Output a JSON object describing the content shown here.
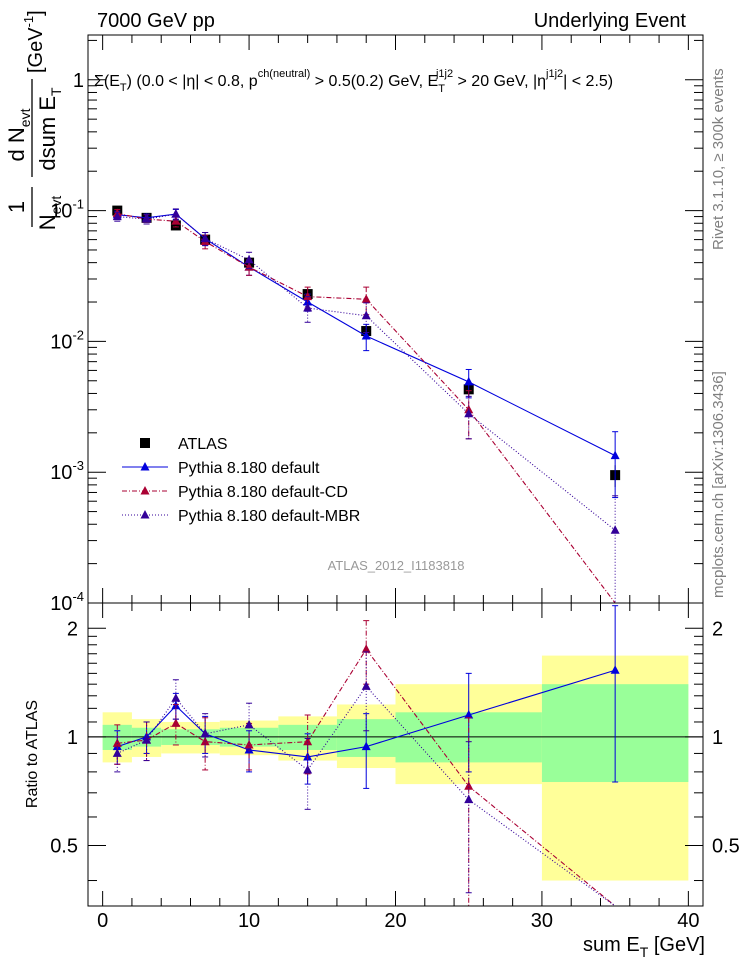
{
  "header": {
    "left": "7000 GeV pp",
    "right": "Underlying Event"
  },
  "side": {
    "upper": "Rivet 3.1.10, ≥ 300k events",
    "lower": "mcplots.cern.ch [arXiv:1306.3436]"
  },
  "watermark": "ATLAS_2012_I1183818",
  "colors": {
    "data": "#000000",
    "default": "#0000dd",
    "cd": "#aa0033",
    "mbr": "#330099",
    "band_inner": "#99ff99",
    "band_outer": "#ffff99"
  },
  "chart_data": [
    {
      "type": "scatter",
      "panel": "main",
      "title": "Σ(E_T) (0.0 < |η| < 0.8, p^{ch(neutral)} > 0.5(0.2) GeV, E_T^{j1j2} > 20 GeV, |η^{j1j2}| < 2.5)",
      "title_parts": [
        "Σ(E",
        "T",
        ") (0.0 < |η| < 0.8, p",
        "ch(neutral)",
        " > 0.5(0.2) GeV, E",
        "T",
        "j1j2",
        " > 20 GeV, |η",
        "j1j2",
        "| < 2.5)"
      ],
      "ylabel_parts": [
        "1",
        "N",
        "evt",
        "d N",
        "evt",
        "dsum E",
        "T",
        "[GeV",
        "-1",
        "]"
      ],
      "yscale": "log",
      "ylim": [
        0.0001,
        2.2
      ],
      "xlim": [
        -1,
        41
      ],
      "yticks": [
        0.0001,
        0.001,
        0.01,
        0.1,
        1
      ],
      "ytick_labels": [
        {
          "base": "10",
          "exp": "-4"
        },
        {
          "base": "10",
          "exp": "-3"
        },
        {
          "base": "10",
          "exp": "-2"
        },
        {
          "base": "10",
          "exp": "-1"
        },
        {
          "base": "1",
          "exp": ""
        }
      ],
      "legend": [
        {
          "key": "data",
          "label": "ATLAS"
        },
        {
          "key": "default",
          "label": "Pythia 8.180 default"
        },
        {
          "key": "cd",
          "label": "Pythia 8.180 default-CD"
        },
        {
          "key": "mbr",
          "label": "Pythia 8.180 default-MBR"
        }
      ],
      "data": {
        "x": [
          1,
          3,
          5,
          7,
          10,
          14,
          18,
          25,
          35
        ],
        "xerr": [
          1,
          1,
          1,
          1,
          2,
          2,
          2,
          5,
          5
        ],
        "y": [
          0.1,
          0.088,
          0.077,
          0.06,
          0.04,
          0.023,
          0.012,
          0.0043,
          0.00095
        ],
        "yerr": [
          0.008,
          0.007,
          0.006,
          0.005,
          0.004,
          0.0025,
          0.0015,
          0.0006,
          0.00018
        ]
      },
      "series": [
        {
          "key": "default",
          "name": "Pythia 8.180 default",
          "x": [
            1,
            3,
            5,
            7,
            10,
            14,
            18,
            25,
            35
          ],
          "y": [
            0.093,
            0.088,
            0.094,
            0.061,
            0.037,
            0.02,
            0.011,
            0.0049,
            0.00134
          ],
          "yerr": [
            0.006,
            0.006,
            0.008,
            0.007,
            0.005,
            0.003,
            0.0025,
            0.0012,
            0.0007
          ]
        },
        {
          "key": "cd",
          "name": "Pythia 8.180 default-CD",
          "x": [
            1,
            3,
            5,
            7,
            10,
            14,
            18,
            25,
            35
          ],
          "y": [
            0.095,
            0.086,
            0.083,
            0.058,
            0.037,
            0.022,
            0.021,
            0.003,
            0.0
          ],
          "yerr": [
            0.007,
            0.007,
            0.008,
            0.007,
            0.005,
            0.004,
            0.005,
            0.0012,
            0
          ]
        },
        {
          "key": "mbr",
          "name": "Pythia 8.180 default-MBR",
          "x": [
            1,
            3,
            5,
            7,
            10,
            14,
            18,
            25,
            35
          ],
          "y": [
            0.09,
            0.086,
            0.094,
            0.061,
            0.042,
            0.018,
            0.0157,
            0.0028,
            0.00036
          ],
          "yerr": [
            0.007,
            0.007,
            0.009,
            0.007,
            0.006,
            0.004,
            0.004,
            0.001,
            0.0003
          ]
        }
      ]
    },
    {
      "type": "scatter",
      "panel": "ratio",
      "ylabel": "Ratio to ATLAS",
      "xlabel_parts": [
        "sum E",
        "T",
        " [GeV]"
      ],
      "xlim": [
        -1,
        41
      ],
      "ylim": [
        0.34,
        2.35
      ],
      "yscale": "log",
      "xticks": [
        0,
        10,
        20,
        30,
        40
      ],
      "xtick_labels": [
        "0",
        "10",
        "20",
        "30",
        "40"
      ],
      "yticks": [
        0.5,
        1,
        2
      ],
      "ytick_labels": [
        "0.5",
        "1",
        "2"
      ],
      "bands": [
        {
          "x0": 0,
          "x1": 2,
          "inner": [
            0.92,
            1.08
          ],
          "outer": [
            0.85,
            1.17
          ]
        },
        {
          "x0": 2,
          "x1": 4,
          "inner": [
            0.94,
            1.06
          ],
          "outer": [
            0.88,
            1.12
          ]
        },
        {
          "x0": 4,
          "x1": 6,
          "inner": [
            0.95,
            1.05
          ],
          "outer": [
            0.9,
            1.1
          ]
        },
        {
          "x0": 6,
          "x1": 8,
          "inner": [
            0.95,
            1.05
          ],
          "outer": [
            0.9,
            1.1
          ]
        },
        {
          "x0": 8,
          "x1": 12,
          "inner": [
            0.94,
            1.06
          ],
          "outer": [
            0.89,
            1.11
          ]
        },
        {
          "x0": 12,
          "x1": 16,
          "inner": [
            0.92,
            1.08
          ],
          "outer": [
            0.86,
            1.14
          ]
        },
        {
          "x0": 16,
          "x1": 20,
          "inner": [
            0.88,
            1.12
          ],
          "outer": [
            0.82,
            1.23
          ]
        },
        {
          "x0": 20,
          "x1": 30,
          "inner": [
            0.85,
            1.17
          ],
          "outer": [
            0.74,
            1.4
          ]
        },
        {
          "x0": 30,
          "x1": 40,
          "inner": [
            0.75,
            1.4
          ],
          "outer": [
            0.4,
            1.68
          ]
        }
      ],
      "series": [
        {
          "key": "default",
          "name": "Pythia 8.180 default",
          "x": [
            1,
            3,
            5,
            7,
            10,
            14,
            18,
            25,
            35
          ],
          "y": [
            0.94,
            1.0,
            1.22,
            1.02,
            0.92,
            0.88,
            0.94,
            1.15,
            1.53
          ],
          "yerr": [
            0.1,
            0.1,
            0.1,
            0.12,
            0.12,
            0.14,
            0.22,
            0.35,
            0.78
          ]
        },
        {
          "key": "cd",
          "name": "Pythia 8.180 default-CD",
          "x": [
            1,
            3,
            5,
            7,
            10,
            14,
            18,
            25,
            35
          ],
          "y": [
            0.96,
            0.98,
            1.09,
            0.97,
            0.95,
            0.97,
            1.75,
            0.73,
            0.0
          ],
          "yerr": [
            0.12,
            0.12,
            0.14,
            0.16,
            0.14,
            0.18,
            0.35,
            0.4,
            0
          ]
        },
        {
          "key": "mbr",
          "name": "Pythia 8.180 default-MBR",
          "x": [
            1,
            3,
            5,
            7,
            10,
            14,
            18,
            25,
            35
          ],
          "y": [
            0.9,
            0.98,
            1.28,
            1.02,
            1.08,
            0.81,
            1.38,
            0.67,
            0.32
          ],
          "yerr": [
            0.1,
            0.12,
            0.16,
            0.14,
            0.16,
            0.18,
            0.34,
            0.3,
            0.3
          ]
        }
      ]
    }
  ]
}
